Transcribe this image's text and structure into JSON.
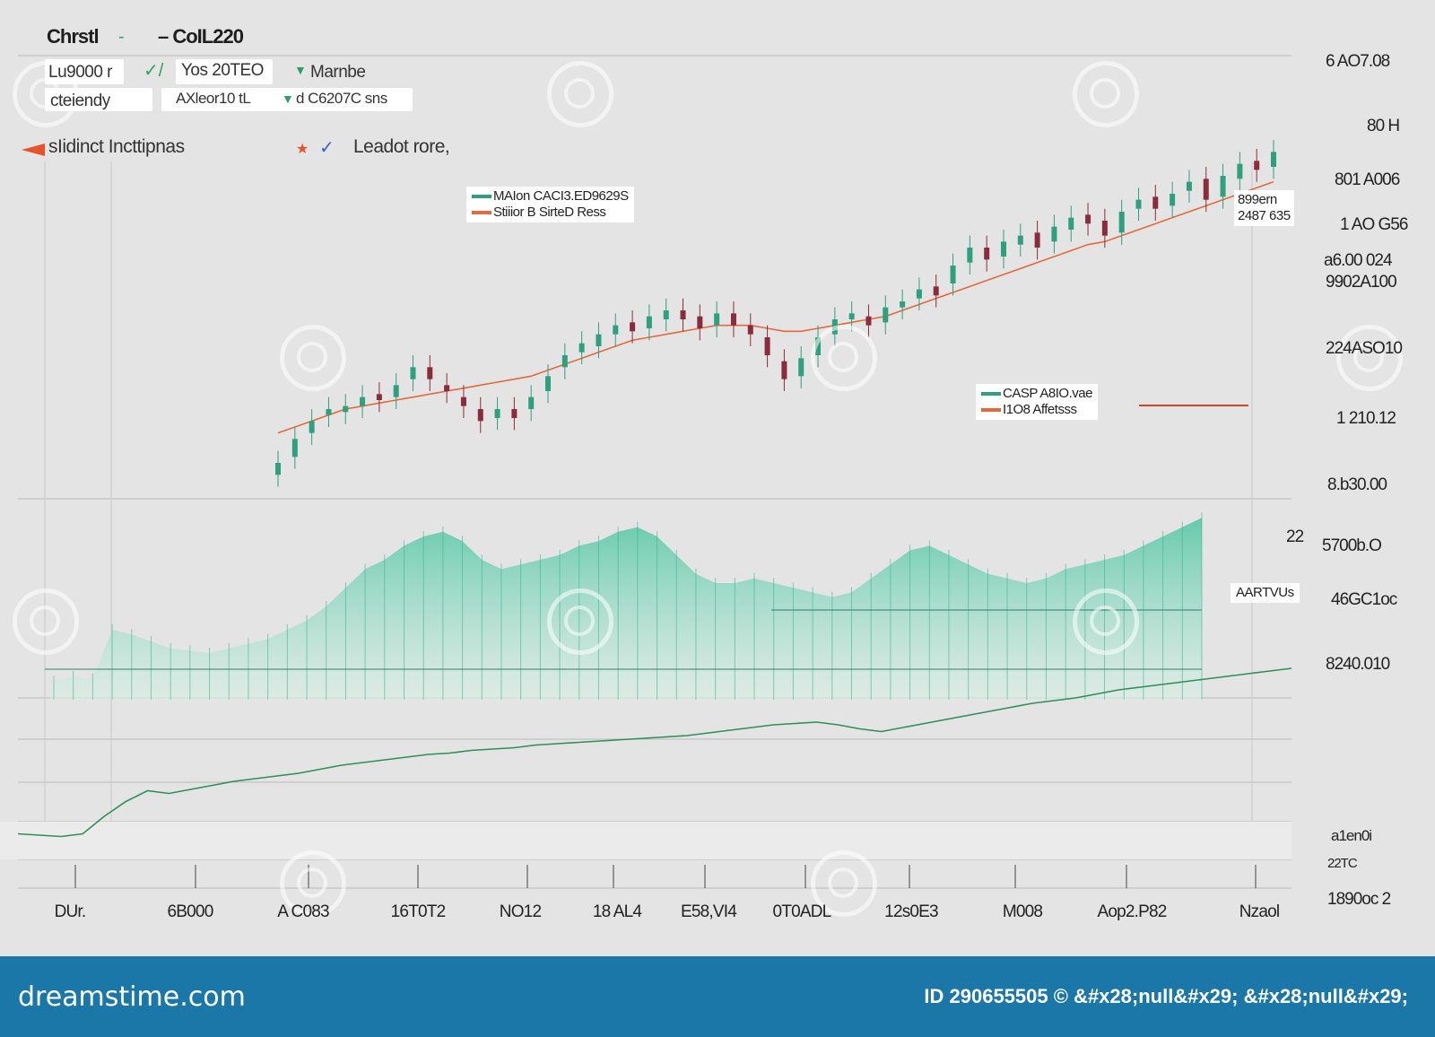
{
  "header": {
    "title": "Chrstl",
    "dash": "-",
    "subtitle": "– CoIL220",
    "row1_left": "Lu9000 r",
    "row1_mid": "Yos 20TEO",
    "row1_right": "Marnbe",
    "row2_left": "cteiendy",
    "row2_mid": "AXleor10 tL",
    "row2_right": "d C6207C sns",
    "legend_left": "sIidinct Incttipnas",
    "legend_right": "Leadot rore,"
  },
  "annotations": {
    "box1_line1": "MAIon CACI3.ED9629S",
    "box1_line2": "Stiiior B SirteD Ress",
    "box2_line1": "CASP A8IO.vae",
    "box2_line2": "I1O8 Affetsss",
    "box3_line1": "899ern",
    "box3_line2": "2487 635",
    "box4": "AARTVUs"
  },
  "y_labels": {
    "l1": "6 AO7.08",
    "l2": "80 H",
    "l3": "801 A006",
    "l4": "1 AO G56",
    "l5": "a6.00 024",
    "l6": "9902A100",
    "l7": "224ASO10",
    "l8": "1 210.12",
    "l9": "8.b30.00",
    "l10": "22",
    "l11": "5700b.O",
    "l12": "46GC1oc",
    "l13": "8240.010",
    "l14": "a1en0i",
    "l15": "22TC",
    "l16": "1890oc 2"
  },
  "x_labels": [
    "DUr.",
    "6B000",
    "A C083",
    "16T0T2",
    "NO12",
    "18 AL4",
    "E58,VI4",
    "0T0ADL",
    "12s0E3",
    "M008",
    "Aop2.P82",
    "Nzaol"
  ],
  "footer": {
    "brand": "dreamstime.com",
    "image_id": "ID 290655505 © &#x28;null&#x29; &#x28;null&#x29;"
  },
  "colors": {
    "up": "#2f9f7d",
    "down": "#8b2c3c",
    "ma": "#e36a3b",
    "volume": "#5fc8a8",
    "line": "#2f8f5a",
    "footer": "#1a77a8"
  },
  "chart_data": {
    "type": "candlestick",
    "title": "",
    "series": [
      {
        "kind": "candles",
        "x": [
          1,
          2,
          3,
          4,
          5,
          6,
          7,
          8,
          9,
          10,
          11,
          12,
          13,
          14,
          15,
          16,
          17,
          18,
          19,
          20,
          21,
          22,
          23,
          24,
          25,
          26,
          27,
          28,
          29,
          30,
          31,
          32,
          33,
          34,
          35,
          36,
          37,
          38,
          39,
          40,
          41,
          42,
          43,
          44,
          45,
          46,
          47,
          48,
          49,
          50,
          51,
          52,
          53,
          54,
          55,
          56,
          57,
          58,
          59,
          60
        ],
        "close": [
          12,
          20,
          26,
          30,
          31,
          34,
          33,
          38,
          44,
          40,
          36,
          31,
          26,
          30,
          27,
          34,
          41,
          48,
          52,
          55,
          58,
          56,
          61,
          63,
          60,
          57,
          62,
          58,
          55,
          48,
          40,
          47,
          54,
          60,
          62,
          58,
          64,
          66,
          70,
          68,
          78,
          84,
          80,
          86,
          88,
          84,
          91,
          94,
          92,
          88,
          96,
          100,
          97,
          102,
          106,
          100,
          108,
          112,
          110,
          116
        ],
        "open": [
          8,
          14,
          22,
          28,
          29,
          31,
          35,
          34,
          40,
          44,
          38,
          34,
          30,
          27,
          30,
          30,
          36,
          44,
          49,
          51,
          55,
          59,
          57,
          60,
          63,
          61,
          58,
          62,
          58,
          54,
          46,
          41,
          48,
          55,
          60,
          61,
          59,
          64,
          67,
          71,
          72,
          79,
          84,
          81,
          85,
          89,
          86,
          90,
          95,
          93,
          89,
          97,
          101,
          98,
          103,
          107,
          101,
          107,
          113,
          111
        ]
      },
      {
        "kind": "moving_average",
        "values": [
          22,
          24,
          26,
          28,
          30,
          31,
          32,
          33,
          34,
          35,
          36,
          37,
          38,
          39,
          40,
          41,
          43,
          45,
          47,
          49,
          51,
          53,
          54,
          55,
          56,
          57,
          58,
          58,
          58,
          57,
          56,
          56,
          57,
          58,
          59,
          60,
          61,
          63,
          65,
          67,
          69,
          71,
          73,
          75,
          77,
          79,
          81,
          83,
          85,
          86,
          88,
          90,
          92,
          94,
          96,
          98,
          100,
          102,
          104,
          106
        ]
      },
      {
        "kind": "volume",
        "values": [
          8,
          10,
          9,
          30,
          28,
          25,
          22,
          21,
          20,
          22,
          24,
          26,
          30,
          34,
          40,
          48,
          56,
          60,
          66,
          70,
          72,
          68,
          60,
          56,
          58,
          60,
          62,
          66,
          68,
          72,
          74,
          70,
          62,
          54,
          50,
          50,
          52,
          50,
          48,
          46,
          44,
          46,
          52,
          58,
          64,
          66,
          62,
          58,
          54,
          52,
          50,
          52,
          56,
          58,
          60,
          62,
          66,
          70,
          74,
          78
        ]
      },
      {
        "kind": "lower_line",
        "values": [
          14,
          12,
          10,
          14,
          40,
          62,
          78,
          74,
          80,
          86,
          92,
          96,
          100,
          104,
          110,
          116,
          120,
          124,
          128,
          132,
          134,
          138,
          140,
          142,
          146,
          148,
          150,
          152,
          154,
          156,
          158,
          160,
          164,
          168,
          172,
          176,
          178,
          180,
          176,
          170,
          166,
          172,
          178,
          184,
          190,
          196,
          202,
          208,
          212,
          216,
          222,
          228,
          232,
          236,
          240,
          244,
          248,
          252,
          256,
          260
        ]
      }
    ],
    "grid": true,
    "legend": "top-left"
  }
}
